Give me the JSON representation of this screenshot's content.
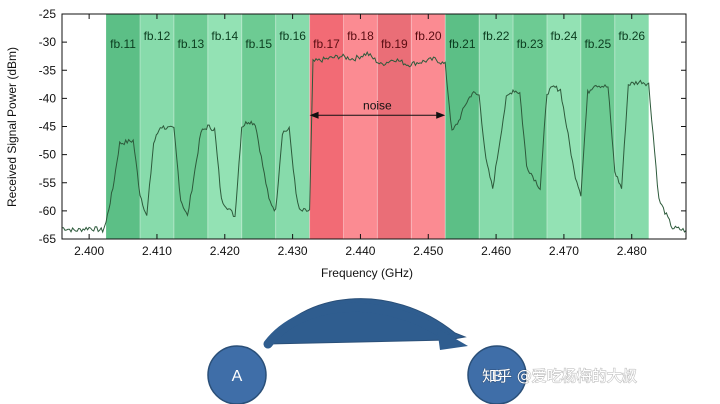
{
  "chart_data": {
    "type": "line",
    "xlabel": "Frequency (GHz)",
    "ylabel": "Received Signal Power (dBm)",
    "xlim": [
      2.396,
      2.488
    ],
    "ylim": [
      -65,
      -25
    ],
    "x_ticks": [
      "2.400",
      "2.410",
      "2.420",
      "2.430",
      "2.440",
      "2.450",
      "2.460",
      "2.470",
      "2.480"
    ],
    "x_tick_values": [
      2.4,
      2.41,
      2.42,
      2.43,
      2.44,
      2.45,
      2.46,
      2.47,
      2.48
    ],
    "y_ticks": [
      "-25",
      "-30",
      "-35",
      "-40",
      "-45",
      "-50",
      "-55",
      "-60",
      "-65"
    ],
    "y_tick_values": [
      -25,
      -30,
      -35,
      -40,
      -45,
      -50,
      -55,
      -60,
      -65
    ],
    "bands": [
      {
        "label": "fb.11",
        "x0": 2.4025,
        "x1": 2.4075,
        "color": "#5cbf86",
        "text_color": "#0b3d1f"
      },
      {
        "label": "fb.12",
        "x0": 2.4075,
        "x1": 2.4125,
        "color": "#87dbab",
        "text_color": "#0b3d1f"
      },
      {
        "label": "fb.13",
        "x0": 2.4125,
        "x1": 2.4175,
        "color": "#6dcb93",
        "text_color": "#0b3d1f"
      },
      {
        "label": "fb.14",
        "x0": 2.4175,
        "x1": 2.4225,
        "color": "#93e2b4",
        "text_color": "#0b3d1f"
      },
      {
        "label": "fb.15",
        "x0": 2.4225,
        "x1": 2.4275,
        "color": "#6dcb93",
        "text_color": "#0b3d1f"
      },
      {
        "label": "fb.16",
        "x0": 2.4275,
        "x1": 2.4325,
        "color": "#87dbab",
        "text_color": "#0b3d1f"
      },
      {
        "label": "fb.17",
        "x0": 2.4325,
        "x1": 2.4375,
        "color": "#f26b75",
        "text_color": "#5a0d12"
      },
      {
        "label": "fb.18",
        "x0": 2.4375,
        "x1": 2.4425,
        "color": "#fb8b92",
        "text_color": "#5a0d12"
      },
      {
        "label": "fb.19",
        "x0": 2.4425,
        "x1": 2.4475,
        "color": "#ea6e77",
        "text_color": "#5a0d12"
      },
      {
        "label": "fb.20",
        "x0": 2.4475,
        "x1": 2.4525,
        "color": "#fb8b92",
        "text_color": "#5a0d12"
      },
      {
        "label": "fb.21",
        "x0": 2.4525,
        "x1": 2.4575,
        "color": "#5cbf86",
        "text_color": "#0b3d1f"
      },
      {
        "label": "fb.22",
        "x0": 2.4575,
        "x1": 2.4625,
        "color": "#87dbab",
        "text_color": "#0b3d1f"
      },
      {
        "label": "fb.23",
        "x0": 2.4625,
        "x1": 2.4675,
        "color": "#6dcb93",
        "text_color": "#0b3d1f"
      },
      {
        "label": "fb.24",
        "x0": 2.4675,
        "x1": 2.4725,
        "color": "#93e2b4",
        "text_color": "#0b3d1f"
      },
      {
        "label": "fb.25",
        "x0": 2.4725,
        "x1": 2.4775,
        "color": "#6dcb93",
        "text_color": "#0b3d1f"
      },
      {
        "label": "fb.26",
        "x0": 2.4775,
        "x1": 2.4825,
        "color": "#87dbab",
        "text_color": "#0b3d1f"
      }
    ],
    "annotation": {
      "text": "noise",
      "x0": 2.4325,
      "x1": 2.4525,
      "y": -43
    },
    "series": [
      {
        "line_color": "#2d5a3b",
        "x": [
          2.396,
          2.398,
          2.4,
          2.402,
          2.4025,
          2.4035,
          2.4045,
          2.4065,
          2.4075,
          2.4085,
          2.4095,
          2.4105,
          2.4125,
          2.4135,
          2.4145,
          2.4165,
          2.4175,
          2.4185,
          2.4195,
          2.4215,
          2.4225,
          2.4235,
          2.4245,
          2.4265,
          2.4275,
          2.4285,
          2.4295,
          2.4305,
          2.431,
          2.4325,
          2.433,
          2.435,
          2.437,
          2.439,
          2.441,
          2.443,
          2.445,
          2.447,
          2.449,
          2.451,
          2.4525,
          2.4535,
          2.4545,
          2.4555,
          2.4565,
          2.4575,
          2.4585,
          2.4595,
          2.4615,
          2.4625,
          2.4635,
          2.4645,
          2.4665,
          2.4675,
          2.4685,
          2.4695,
          2.4715,
          2.4725,
          2.4735,
          2.4745,
          2.4765,
          2.4775,
          2.4785,
          2.4795,
          2.4815,
          2.4825,
          2.484,
          2.486,
          2.488
        ],
        "y": [
          -63,
          -63.5,
          -63,
          -63.5,
          -62,
          -56,
          -48,
          -47.5,
          -57,
          -61,
          -48,
          -45,
          -45.5,
          -58,
          -61,
          -46,
          -45,
          -45.5,
          -58,
          -61,
          -45,
          -44,
          -44.5,
          -58,
          -60,
          -46,
          -45.5,
          -57,
          -60,
          -60,
          -33.5,
          -33,
          -32.5,
          -33,
          -32,
          -34,
          -33,
          -34,
          -33.5,
          -33,
          -34,
          -46,
          -44,
          -41,
          -39,
          -39.5,
          -51,
          -56,
          -40,
          -38.5,
          -39,
          -52,
          -56,
          -39,
          -38,
          -38.5,
          -53,
          -57,
          -39,
          -37.5,
          -38,
          -53,
          -56,
          -37.5,
          -37,
          -37.5,
          -58,
          -63,
          -63.5
        ]
      }
    ]
  },
  "diagram": {
    "node_a": "A",
    "node_b": "B"
  },
  "watermark": {
    "text": "知乎 @爱吃杨梅的大叔"
  }
}
